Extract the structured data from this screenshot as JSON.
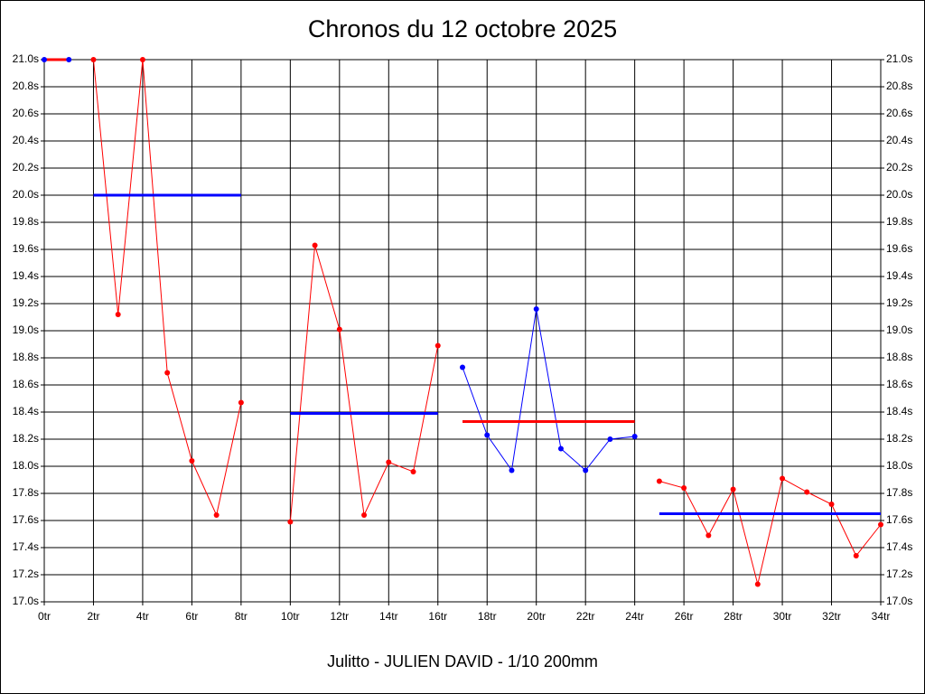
{
  "chart_data": {
    "type": "line",
    "title": "Chronos du 12 octobre 2025",
    "xlabel": "Julitto - JULIEN DAVID - 1/10 200mm",
    "xlim": [
      0,
      34
    ],
    "xticks": [
      {
        "value": 0,
        "label": "0tr"
      },
      {
        "value": 2,
        "label": "2tr"
      },
      {
        "value": 4,
        "label": "4tr"
      },
      {
        "value": 6,
        "label": "6tr"
      },
      {
        "value": 8,
        "label": "8tr"
      },
      {
        "value": 10,
        "label": "10tr"
      },
      {
        "value": 12,
        "label": "12tr"
      },
      {
        "value": 14,
        "label": "14tr"
      },
      {
        "value": 16,
        "label": "16tr"
      },
      {
        "value": 18,
        "label": "18tr"
      },
      {
        "value": 20,
        "label": "20tr"
      },
      {
        "value": 22,
        "label": "22tr"
      },
      {
        "value": 24,
        "label": "24tr"
      },
      {
        "value": 26,
        "label": "26tr"
      },
      {
        "value": 28,
        "label": "28tr"
      },
      {
        "value": 30,
        "label": "30tr"
      },
      {
        "value": 32,
        "label": "32tr"
      },
      {
        "value": 34,
        "label": "34tr"
      }
    ],
    "ylim": [
      17.0,
      21.0
    ],
    "yticks": [
      {
        "value": 17.0,
        "label": "17.0s"
      },
      {
        "value": 17.2,
        "label": "17.2s"
      },
      {
        "value": 17.4,
        "label": "17.4s"
      },
      {
        "value": 17.6,
        "label": "17.6s"
      },
      {
        "value": 17.8,
        "label": "17.8s"
      },
      {
        "value": 18.0,
        "label": "18.0s"
      },
      {
        "value": 18.2,
        "label": "18.2s"
      },
      {
        "value": 18.4,
        "label": "18.4s"
      },
      {
        "value": 18.6,
        "label": "18.6s"
      },
      {
        "value": 18.8,
        "label": "18.8s"
      },
      {
        "value": 19.0,
        "label": "19.0s"
      },
      {
        "value": 19.2,
        "label": "19.2s"
      },
      {
        "value": 19.4,
        "label": "19.4s"
      },
      {
        "value": 19.6,
        "label": "19.6s"
      },
      {
        "value": 19.8,
        "label": "19.8s"
      },
      {
        "value": 20.0,
        "label": "20.0s"
      },
      {
        "value": 20.2,
        "label": "20.2s"
      },
      {
        "value": 20.4,
        "label": "20.4s"
      },
      {
        "value": 20.6,
        "label": "20.6s"
      },
      {
        "value": 20.8,
        "label": "20.8s"
      },
      {
        "value": 21.0,
        "label": "21.0s"
      }
    ],
    "grid": true,
    "series": [
      {
        "color": "#0000ff",
        "x": [
          0,
          1
        ],
        "values": [
          21.0,
          21.0
        ]
      },
      {
        "color": "#ff0000",
        "x": [
          2,
          3,
          4,
          5,
          6,
          7,
          8
        ],
        "values": [
          21.0,
          19.12,
          21.0,
          18.69,
          18.04,
          17.64,
          18.47
        ]
      },
      {
        "color": "#ff0000",
        "x": [
          10,
          11,
          12,
          13,
          14,
          15,
          16
        ],
        "values": [
          17.59,
          19.63,
          19.01,
          17.64,
          18.03,
          17.96,
          18.89
        ]
      },
      {
        "color": "#0000ff",
        "x": [
          17,
          18,
          19,
          20,
          21,
          22,
          23,
          24
        ],
        "values": [
          18.73,
          18.23,
          17.97,
          19.16,
          18.13,
          17.97,
          18.2,
          18.22
        ]
      },
      {
        "color": "#ff0000",
        "x": [
          25,
          26,
          27,
          28,
          29,
          30,
          31,
          32,
          33,
          34
        ],
        "values": [
          17.89,
          17.84,
          17.49,
          17.83,
          17.13,
          17.91,
          17.81,
          17.72,
          17.34,
          17.57
        ]
      }
    ],
    "averages": [
      {
        "color": "#ff0000",
        "from": 0,
        "to": 1,
        "value": 21.0
      },
      {
        "color": "#0000ff",
        "from": 2,
        "to": 8,
        "value": 20.0
      },
      {
        "color": "#0000ff",
        "from": 10,
        "to": 16,
        "value": 18.39
      },
      {
        "color": "#ff0000",
        "from": 17,
        "to": 24,
        "value": 18.33
      },
      {
        "color": "#0000ff",
        "from": 25,
        "to": 34,
        "value": 17.65
      }
    ]
  }
}
